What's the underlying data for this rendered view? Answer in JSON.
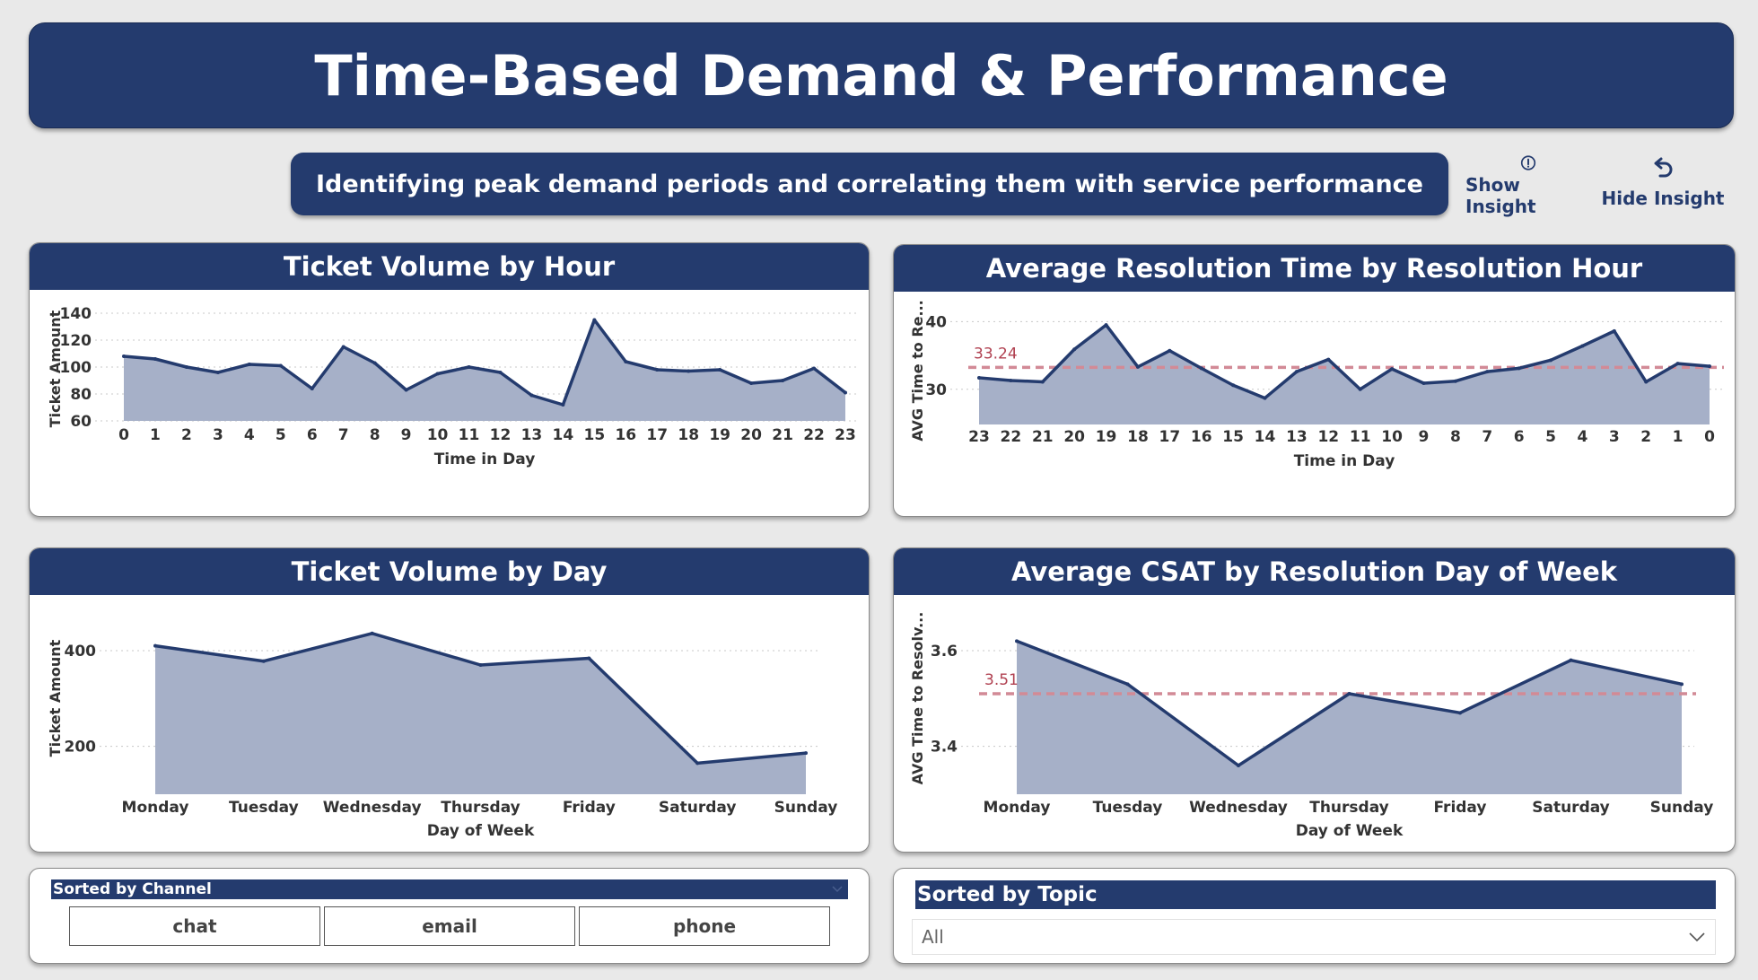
{
  "header": {
    "title": "Time-Based Demand & Performance",
    "subtitle": "Identifying peak demand periods and correlating them with service performance"
  },
  "buttons": {
    "show_insight": "Show Insight",
    "hide_insight": "Hide Insight"
  },
  "colors": {
    "navy": "#243b6e",
    "area_fill": "#a6b0c8",
    "reference_line": "#d28a96",
    "reference_text": "#b04050"
  },
  "chart_data": [
    {
      "id": "hour_volume",
      "type": "area",
      "title": "Ticket Volume by Hour",
      "xlabel": "Time in Day",
      "ylabel": "Ticket Amount",
      "categories": [
        "0",
        "1",
        "2",
        "3",
        "4",
        "5",
        "6",
        "7",
        "8",
        "9",
        "10",
        "11",
        "12",
        "13",
        "14",
        "15",
        "16",
        "17",
        "18",
        "19",
        "20",
        "21",
        "22",
        "23"
      ],
      "values": [
        108,
        106,
        100,
        96,
        102,
        101,
        84,
        115,
        103,
        83,
        95,
        100,
        96,
        79,
        72,
        135,
        104,
        98,
        97,
        98,
        88,
        90,
        99,
        81
      ],
      "ylim": [
        60,
        140
      ],
      "yticks": [
        60,
        80,
        100,
        120,
        140
      ],
      "grid": true
    },
    {
      "id": "resolution_hour",
      "type": "area",
      "title": "Average Resolution Time by Resolution Hour",
      "xlabel": "Time in Day",
      "ylabel": "AVG Time to Re...",
      "categories": [
        "23",
        "22",
        "21",
        "20",
        "19",
        "18",
        "17",
        "16",
        "15",
        "14",
        "13",
        "12",
        "11",
        "10",
        "9",
        "8",
        "7",
        "6",
        "5",
        "4",
        "3",
        "2",
        "1",
        "0"
      ],
      "values": [
        31.7,
        31.3,
        31.1,
        35.9,
        39.5,
        33.3,
        35.7,
        33.1,
        30.6,
        28.7,
        32.6,
        34.4,
        30.0,
        33.0,
        30.9,
        31.2,
        32.6,
        33.1,
        34.3,
        36.4,
        38.6,
        31.1,
        33.8,
        33.4
      ],
      "ylim": [
        24.8,
        41.5
      ],
      "yticks": [
        30,
        40
      ],
      "reference_line": {
        "value": 33.24,
        "label": "33.24"
      },
      "grid": true
    },
    {
      "id": "day_volume",
      "type": "area",
      "title": "Ticket Volume by Day",
      "xlabel": "Day of Week",
      "ylabel": "Ticket Amount",
      "categories": [
        "Monday",
        "Tuesday",
        "Wednesday",
        "Thursday",
        "Friday",
        "Saturday",
        "Sunday"
      ],
      "values": [
        410,
        378,
        436,
        370,
        384,
        165,
        186
      ],
      "ylim": [
        100,
        460
      ],
      "yticks": [
        200,
        400
      ],
      "grid": true
    },
    {
      "id": "csat_day",
      "type": "area",
      "title": "Average CSAT by Resolution Day of Week",
      "xlabel": "Day of Week",
      "ylabel": "AVG Time to Resolv...",
      "categories": [
        "Monday",
        "Tuesday",
        "Wednesday",
        "Thursday",
        "Friday",
        "Saturday",
        "Sunday"
      ],
      "values": [
        3.62,
        3.53,
        3.36,
        3.51,
        3.47,
        3.58,
        3.53
      ],
      "ylim": [
        3.3,
        3.66
      ],
      "yticks": [
        3.4,
        3.6
      ],
      "reference_line": {
        "value": 3.51,
        "label": "3.51"
      },
      "grid": true
    }
  ],
  "slicers": {
    "channel": {
      "header": "Sorted by Channel",
      "options": [
        "chat",
        "email",
        "phone"
      ]
    },
    "topic": {
      "header": "Sorted by Topic",
      "selected": "All"
    }
  }
}
